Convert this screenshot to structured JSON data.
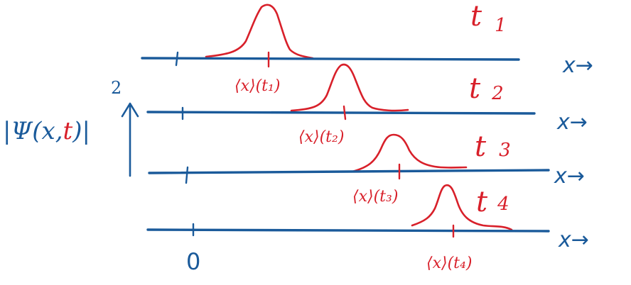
{
  "y_axis": {
    "label_prefix": "|Ψ(x,",
    "label_t": "t",
    "label_suffix": ")|",
    "exponent": "2"
  },
  "origin_label": "0",
  "rows": [
    {
      "time_label": "t",
      "time_sub": "1",
      "mean_label": "⟨x⟩(t₁)",
      "axis_label": "x→"
    },
    {
      "time_label": "t",
      "time_sub": "2",
      "mean_label": "⟨x⟩(t₂)",
      "axis_label": "x→"
    },
    {
      "time_label": "t",
      "time_sub": "3",
      "mean_label": "⟨x⟩(t₃)",
      "axis_label": "x→"
    },
    {
      "time_label": "t",
      "time_sub": "4",
      "mean_label": "⟨x⟩(t₄)",
      "axis_label": "x→"
    }
  ],
  "colors": {
    "axis": "#1a5a9a",
    "packet": "#d8202a"
  }
}
